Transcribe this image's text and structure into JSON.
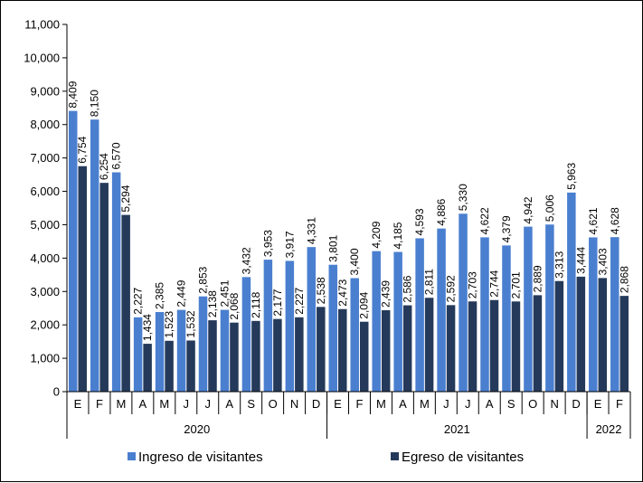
{
  "chart_data": {
    "type": "bar",
    "categories": [
      "E",
      "F",
      "M",
      "A",
      "M",
      "J",
      "J",
      "A",
      "S",
      "O",
      "N",
      "D",
      "E",
      "F",
      "M",
      "A",
      "M",
      "J",
      "J",
      "A",
      "S",
      "O",
      "N",
      "D",
      "E",
      "F"
    ],
    "groups": [
      {
        "label": "2020",
        "count": 12
      },
      {
        "label": "2021",
        "count": 12
      },
      {
        "label": "2022",
        "count": 2
      }
    ],
    "series": [
      {
        "name": "Ingreso de visitantes",
        "color": "#4a7fd0",
        "values": [
          8409,
          8150,
          6570,
          2227,
          2385,
          2449,
          2853,
          2451,
          3432,
          3953,
          3917,
          4331,
          3801,
          3400,
          4209,
          4185,
          4593,
          4886,
          5330,
          4622,
          4379,
          4942,
          5006,
          5963,
          4621,
          4628
        ],
        "labels": [
          "8,409",
          "8,150",
          "6,570",
          "2,227",
          "2,385",
          "2,449",
          "2,853",
          "2,451",
          "3,432",
          "3,953",
          "3,917",
          "4,331",
          "3,801",
          "3,400",
          "4,209",
          "4,185",
          "4,593",
          "4,886",
          "5,330",
          "4,622",
          "4,379",
          "4,942",
          "5,006",
          "5,963",
          "4,621",
          "4,628"
        ]
      },
      {
        "name": "Egreso de visitantes",
        "color": "#253a5a",
        "values": [
          6754,
          6254,
          5294,
          1434,
          1523,
          1532,
          2138,
          2068,
          2118,
          2177,
          2227,
          2538,
          2473,
          2094,
          2439,
          2586,
          2811,
          2592,
          2703,
          2744,
          2701,
          2889,
          3313,
          3444,
          3403,
          2868
        ],
        "labels": [
          "6,754",
          "6,254",
          "5,294",
          "1,434",
          "1,523",
          "1,532",
          "2,138",
          "2,068",
          "2,118",
          "2,177",
          "2,227",
          "2,538",
          "2,473",
          "2,094",
          "2,439",
          "2,586",
          "2,811",
          "2,592",
          "2,703",
          "2,744",
          "2,701",
          "2,889",
          "3,313",
          "3,444",
          "3,403",
          "2,868"
        ]
      }
    ],
    "ylim": [
      0,
      11000
    ],
    "yticks": [
      "0",
      "1,000",
      "2,000",
      "3,000",
      "4,000",
      "5,000",
      "6,000",
      "7,000",
      "8,000",
      "9,000",
      "10,000",
      "11,000"
    ],
    "ytick_values": [
      0,
      1000,
      2000,
      3000,
      4000,
      5000,
      6000,
      7000,
      8000,
      9000,
      10000,
      11000
    ],
    "title": "",
    "xlabel": "",
    "ylabel": "",
    "grid": false,
    "legend_position": "bottom"
  }
}
